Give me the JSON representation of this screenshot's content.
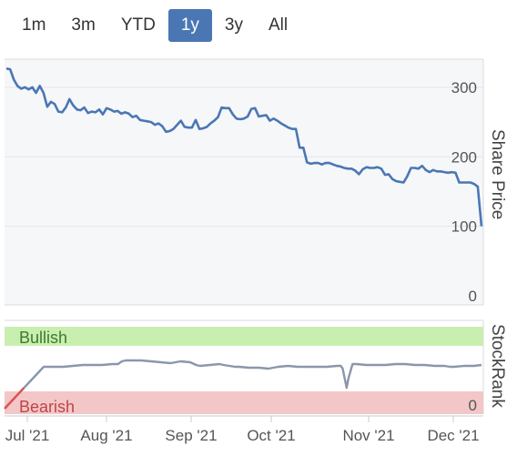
{
  "range_selector": {
    "buttons": [
      "1m",
      "3m",
      "YTD",
      "1y",
      "3y",
      "All"
    ],
    "active": "1y"
  },
  "colors": {
    "price_line": "#4a77b4",
    "rank_line": "#8a97ab",
    "bullish_band": "#c9efb0",
    "bearish_band": "#f3c7c7",
    "bearish_trend": "#d9534f",
    "plot_bg": "#f6f7f9"
  },
  "chart_data": [
    {
      "type": "line",
      "ylabel": "Share Price",
      "ylim": [
        0,
        330
      ],
      "yticks": [
        "0",
        "100",
        "200",
        "300"
      ],
      "grid": true,
      "x": [
        "Jul '21",
        "Aug '21",
        "Sep '21",
        "Oct '21",
        "Nov '21",
        "Dec '21"
      ],
      "series": [
        {
          "values": [
            [
              0,
              327
            ],
            [
              1,
              326
            ],
            [
              2,
              311
            ],
            [
              3,
              302
            ],
            [
              4,
              298
            ],
            [
              5,
              300
            ],
            [
              6,
              297
            ],
            [
              7,
              300
            ],
            [
              8,
              292
            ],
            [
              9,
              302
            ],
            [
              10,
              292
            ],
            [
              11,
              272
            ],
            [
              12,
              279
            ],
            [
              13,
              276
            ],
            [
              14,
              265
            ],
            [
              15,
              264
            ],
            [
              16,
              271
            ],
            [
              17,
              283
            ],
            [
              18,
              274
            ],
            [
              19,
              268
            ],
            [
              20,
              267
            ],
            [
              21,
              271
            ],
            [
              22,
              263
            ],
            [
              23,
              265
            ],
            [
              24,
              264
            ],
            [
              25,
              268
            ],
            [
              26,
              261
            ],
            [
              27,
              270
            ],
            [
              28,
              268
            ],
            [
              29,
              265
            ],
            [
              30,
              266
            ],
            [
              31,
              262
            ],
            [
              32,
              264
            ],
            [
              33,
              262
            ],
            [
              34,
              257
            ],
            [
              35,
              259
            ],
            [
              36,
              253
            ],
            [
              37,
              252
            ],
            [
              38,
              251
            ],
            [
              39,
              250
            ],
            [
              40,
              246
            ],
            [
              41,
              248
            ],
            [
              42,
              244
            ],
            [
              43,
              236
            ],
            [
              44,
              237
            ],
            [
              45,
              240
            ],
            [
              46,
              246
            ],
            [
              47,
              252
            ],
            [
              48,
              243
            ],
            [
              49,
              242
            ],
            [
              50,
              242
            ],
            [
              51,
              253
            ],
            [
              52,
              240
            ],
            [
              53,
              241
            ],
            [
              54,
              243
            ],
            [
              55,
              248
            ],
            [
              56,
              252
            ],
            [
              57,
              257
            ],
            [
              58,
              271
            ],
            [
              59,
              270
            ],
            [
              60,
              270
            ],
            [
              61,
              261
            ],
            [
              62,
              255
            ],
            [
              63,
              254
            ],
            [
              64,
              255
            ],
            [
              65,
              258
            ],
            [
              66,
              269
            ],
            [
              67,
              270
            ],
            [
              68,
              258
            ],
            [
              69,
              259
            ],
            [
              70,
              260
            ],
            [
              71,
              252
            ],
            [
              72,
              255
            ],
            [
              73,
              252
            ],
            [
              74,
              248
            ],
            [
              75,
              245
            ],
            [
              76,
              242
            ],
            [
              77,
              240
            ],
            [
              78,
              240
            ],
            [
              79,
              213
            ],
            [
              80,
              213
            ],
            [
              81,
              192
            ],
            [
              82,
              190
            ],
            [
              83,
              191
            ],
            [
              84,
              191
            ],
            [
              85,
              189
            ],
            [
              86,
              191
            ],
            [
              87,
              191
            ],
            [
              88,
              189
            ],
            [
              89,
              187
            ],
            [
              90,
              186
            ],
            [
              91,
              184
            ],
            [
              92,
              183
            ],
            [
              93,
              183
            ],
            [
              94,
              180
            ],
            [
              95,
              175
            ],
            [
              96,
              182
            ],
            [
              97,
              185
            ],
            [
              98,
              184
            ],
            [
              99,
              184
            ],
            [
              100,
              185
            ],
            [
              101,
              183
            ],
            [
              102,
              174
            ],
            [
              103,
              175
            ],
            [
              104,
              168
            ],
            [
              105,
              165
            ],
            [
              106,
              164
            ],
            [
              107,
              163
            ],
            [
              108,
              172
            ],
            [
              109,
              184
            ],
            [
              110,
              184
            ],
            [
              111,
              183
            ],
            [
              112,
              187
            ],
            [
              113,
              181
            ],
            [
              114,
              178
            ],
            [
              115,
              181
            ],
            [
              116,
              179
            ],
            [
              117,
              179
            ],
            [
              118,
              178
            ],
            [
              119,
              177
            ],
            [
              120,
              178
            ],
            [
              121,
              177
            ],
            [
              122,
              163
            ],
            [
              123,
              163
            ],
            [
              124,
              163
            ],
            [
              125,
              163
            ],
            [
              126,
              161
            ],
            [
              127,
              157
            ],
            [
              128,
              100
            ]
          ]
        }
      ]
    },
    {
      "type": "line",
      "ylabel": "StockRank",
      "yticks": [
        "0"
      ],
      "ylim": [
        0,
        100
      ],
      "bands": [
        "Bullish",
        "Bearish"
      ],
      "series": [
        {
          "values": [
            [
              0,
              4
            ],
            [
              20,
              50
            ],
            [
              30,
              50
            ],
            [
              40,
              52
            ],
            [
              45,
              52
            ],
            [
              50,
              52
            ],
            [
              55,
              53
            ],
            [
              58,
              53
            ],
            [
              60,
              56
            ],
            [
              62,
              57
            ],
            [
              70,
              57
            ],
            [
              75,
              56
            ],
            [
              80,
              55
            ],
            [
              85,
              54
            ],
            [
              90,
              56
            ],
            [
              95,
              55
            ],
            [
              98,
              52
            ],
            [
              100,
              51
            ],
            [
              105,
              52
            ],
            [
              110,
              53
            ],
            [
              112,
              52
            ],
            [
              115,
              51
            ],
            [
              118,
              50
            ],
            [
              120,
              50
            ],
            [
              125,
              49
            ],
            [
              130,
              49
            ],
            [
              135,
              48
            ],
            [
              140,
              50
            ],
            [
              145,
              51
            ],
            [
              150,
              50
            ],
            [
              155,
              50
            ],
            [
              160,
              50
            ],
            [
              165,
              50
            ],
            [
              170,
              51
            ],
            [
              172,
              51
            ],
            [
              173,
              48
            ],
            [
              175,
              27
            ],
            [
              176,
              38
            ],
            [
              178,
              53
            ],
            [
              180,
              53
            ],
            [
              185,
              52
            ],
            [
              190,
              52
            ],
            [
              195,
              52
            ],
            [
              200,
              53
            ],
            [
              205,
              53
            ],
            [
              210,
              52
            ],
            [
              215,
              52
            ],
            [
              220,
              51
            ],
            [
              225,
              51
            ],
            [
              228,
              50
            ],
            [
              230,
              50
            ],
            [
              235,
              51
            ],
            [
              240,
              51
            ],
            [
              244,
              52
            ]
          ]
        }
      ]
    }
  ]
}
